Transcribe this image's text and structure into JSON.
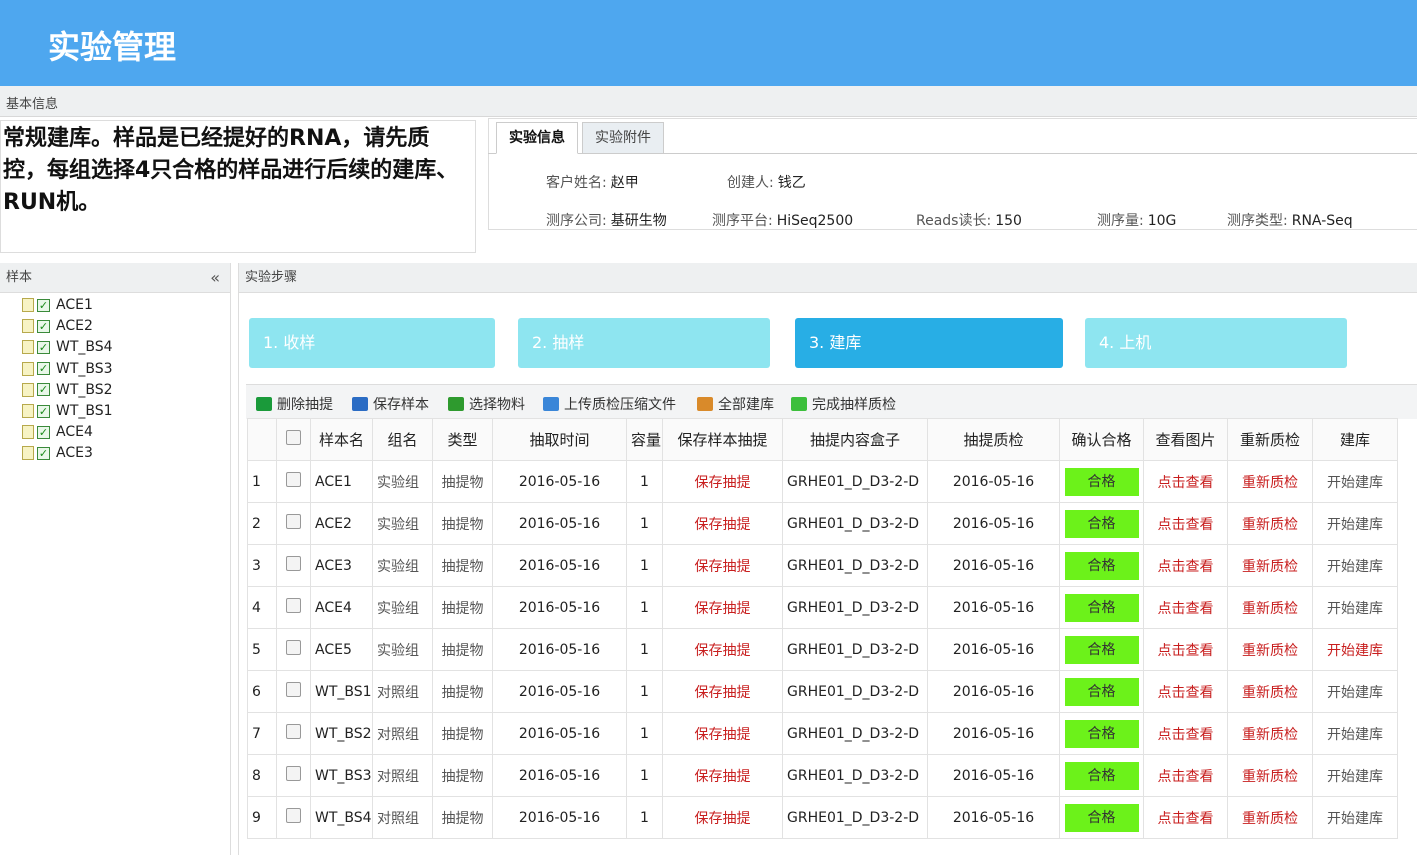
{
  "header": {
    "title": "实验管理"
  },
  "basic_info": {
    "label": "基本信息",
    "description": "常规建库。样品是已经提好的RNA，请先质控，每组选择4只合格的样品进行后续的建库、RUN机。",
    "tabs": [
      "实验信息",
      "实验附件"
    ],
    "fields": [
      {
        "label": "客户姓名:",
        "value": "赵甲"
      },
      {
        "label": "创建人:",
        "value": "钱乙"
      },
      {
        "label": "测序公司:",
        "value": "基研生物"
      },
      {
        "label": "测序平台:",
        "value": "HiSeq2500"
      },
      {
        "label": "Reads读长:",
        "value": "150"
      },
      {
        "label": "测序量:",
        "value": "10G"
      },
      {
        "label": "测序类型:",
        "value": "RNA-Seq"
      }
    ]
  },
  "samples": {
    "title": "样本",
    "items": [
      "ACE1",
      "ACE2",
      "WT_BS4",
      "WT_BS3",
      "WT_BS2",
      "WT_BS1",
      "ACE4",
      "ACE3"
    ]
  },
  "steps": {
    "title": "实验步骤",
    "items": [
      "1. 收样",
      "2. 抽样",
      "3. 建库",
      "4. 上机"
    ],
    "active": 2
  },
  "toolbar": [
    "删除抽提",
    "保存样本",
    "选择物料",
    "上传质检压缩文件",
    "全部建库",
    "完成抽样质检"
  ],
  "table": {
    "columns": [
      "样本名",
      "组名",
      "类型",
      "抽取时间",
      "容量",
      "保存样本抽提",
      "抽提内容盒子",
      "抽提质检",
      "确认合格",
      "查看图片",
      "重新质检",
      "建库"
    ],
    "rows": [
      [
        "1",
        "ACE1",
        "实验组",
        "抽提物",
        "2016-05-16",
        "1",
        "保存抽提",
        "GRHE01_D_D3-2-D",
        "2016-05-16",
        "合格",
        "点击查看",
        "重新质检",
        "开始建库"
      ],
      [
        "2",
        "ACE2",
        "实验组",
        "抽提物",
        "2016-05-16",
        "1",
        "保存抽提",
        "GRHE01_D_D3-2-D",
        "2016-05-16",
        "合格",
        "点击查看",
        "重新质检",
        "开始建库"
      ],
      [
        "3",
        "ACE3",
        "实验组",
        "抽提物",
        "2016-05-16",
        "1",
        "保存抽提",
        "GRHE01_D_D3-2-D",
        "2016-05-16",
        "合格",
        "点击查看",
        "重新质检",
        "开始建库"
      ],
      [
        "4",
        "ACE4",
        "实验组",
        "抽提物",
        "2016-05-16",
        "1",
        "保存抽提",
        "GRHE01_D_D3-2-D",
        "2016-05-16",
        "合格",
        "点击查看",
        "重新质检",
        "开始建库"
      ],
      [
        "5",
        "ACE5",
        "实验组",
        "抽提物",
        "2016-05-16",
        "1",
        "保存抽提",
        "GRHE01_D_D3-2-D",
        "2016-05-16",
        "合格",
        "点击查看",
        "重新质检",
        "开始建库"
      ],
      [
        "6",
        "WT_BS1",
        "对照组",
        "抽提物",
        "2016-05-16",
        "1",
        "保存抽提",
        "GRHE01_D_D3-2-D",
        "2016-05-16",
        "合格",
        "点击查看",
        "重新质检",
        "开始建库"
      ],
      [
        "7",
        "WT_BS2",
        "对照组",
        "抽提物",
        "2016-05-16",
        "1",
        "保存抽提",
        "GRHE01_D_D3-2-D",
        "2016-05-16",
        "合格",
        "点击查看",
        "重新质检",
        "开始建库"
      ],
      [
        "8",
        "WT_BS3",
        "对照组",
        "抽提物",
        "2016-05-16",
        "1",
        "保存抽提",
        "GRHE01_D_D3-2-D",
        "2016-05-16",
        "合格",
        "点击查看",
        "重新质检",
        "开始建库"
      ],
      [
        "9",
        "WT_BS4",
        "对照组",
        "抽提物",
        "2016-05-16",
        "1",
        "保存抽提",
        "GRHE01_D_D3-2-D",
        "2016-05-16",
        "合格",
        "点击查看",
        "重新质检",
        "开始建库"
      ]
    ]
  }
}
